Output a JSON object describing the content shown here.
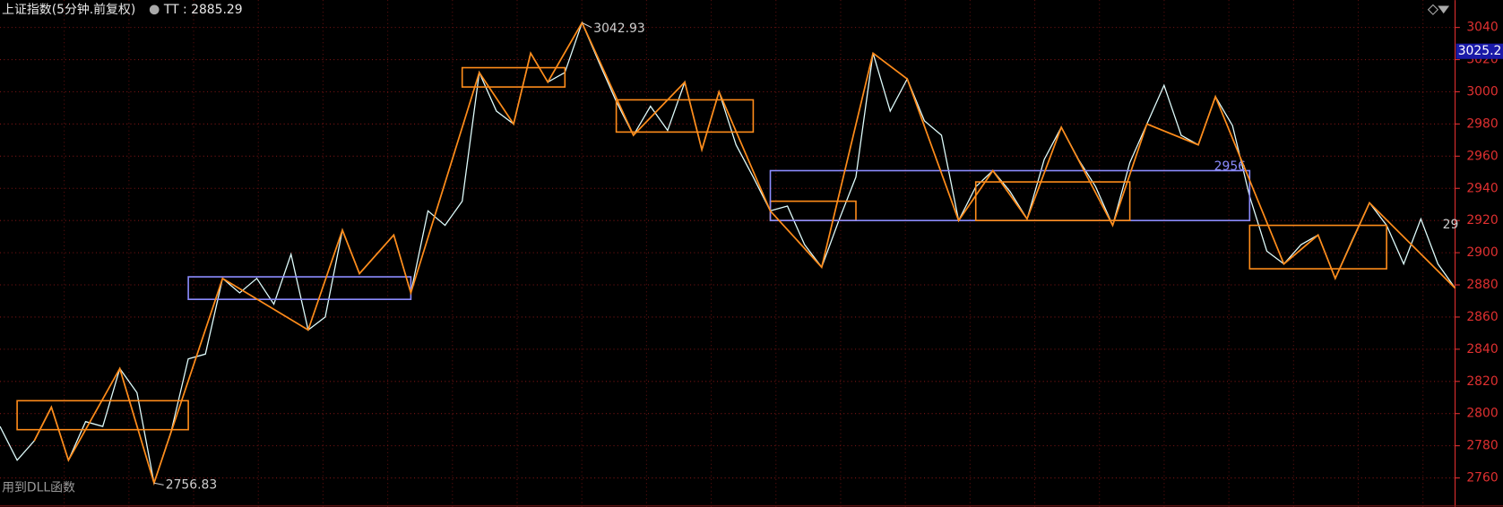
{
  "chart_data": {
    "type": "line",
    "title": "上证指数(5分钟.前复权)",
    "indicator": "TT : 2885.29",
    "footer_note": "用到DLL函数",
    "categories": [
      null,
      null,
      null,
      null,
      null,
      null,
      null,
      null,
      null,
      null,
      null,
      null,
      null,
      null,
      null,
      null,
      null,
      null,
      null,
      null,
      null,
      null,
      null,
      null,
      null,
      null,
      null,
      null,
      null,
      null,
      null,
      null,
      null,
      null,
      null,
      null,
      null,
      null,
      null,
      null,
      null,
      null,
      null,
      null,
      null,
      null,
      null,
      null,
      null,
      null,
      null,
      null,
      null,
      null,
      null,
      null,
      null,
      null,
      null,
      null,
      null,
      null,
      null,
      null,
      null,
      null,
      null,
      null,
      null,
      null,
      null,
      null,
      null,
      null,
      null,
      null,
      null,
      null,
      null,
      null,
      null,
      null,
      null,
      null,
      null,
      null
    ],
    "series": [
      {
        "color": "#dffcfc",
        "values": [
          2792,
          2771,
          2783,
          2804,
          2771,
          2795,
          2792,
          2828,
          2813,
          2756.83,
          2789,
          2834,
          2837,
          2884,
          2875,
          2884,
          2868,
          2899,
          2852,
          2860,
          2914,
          2887,
          2899,
          2911,
          2875,
          2926,
          2917,
          2932,
          3012,
          2988,
          2980,
          3024,
          3006,
          3012,
          3042.93,
          3018,
          2994,
          2973,
          2991,
          2976,
          3006,
          2964,
          3000,
          2967,
          2947,
          2926,
          2929,
          2905,
          2891,
          2920,
          2947,
          3024,
          2988,
          3008,
          2982,
          2973,
          2920,
          2941,
          2951,
          2938,
          2921,
          2958,
          2978,
          2958,
          2941,
          2917,
          2956,
          2980,
          3004,
          2973,
          2967,
          2997,
          2979,
          2935,
          2901,
          2893,
          2905,
          2911,
          2884,
          2908,
          2931,
          2917,
          2893,
          2921,
          2893,
          2878
        ]
      }
    ],
    "zigzag": {
      "color": "#ff8c1a",
      "points": [
        {
          "i": 2,
          "v": 2783
        },
        {
          "i": 3,
          "v": 2804
        },
        {
          "i": 4,
          "v": 2771
        },
        {
          "i": 7,
          "v": 2828
        },
        {
          "i": 9,
          "v": 2756.83
        },
        {
          "i": 13,
          "v": 2884
        },
        {
          "i": 18,
          "v": 2852
        },
        {
          "i": 20,
          "v": 2914
        },
        {
          "i": 21,
          "v": 2887
        },
        {
          "i": 23,
          "v": 2911
        },
        {
          "i": 24,
          "v": 2875
        },
        {
          "i": 28,
          "v": 3012
        },
        {
          "i": 30,
          "v": 2980
        },
        {
          "i": 31,
          "v": 3024
        },
        {
          "i": 32,
          "v": 3006
        },
        {
          "i": 34,
          "v": 3042.93
        },
        {
          "i": 37,
          "v": 2973
        },
        {
          "i": 40,
          "v": 3006
        },
        {
          "i": 41,
          "v": 2964
        },
        {
          "i": 42,
          "v": 3000
        },
        {
          "i": 45,
          "v": 2926
        },
        {
          "i": 48,
          "v": 2891
        },
        {
          "i": 51,
          "v": 3024
        },
        {
          "i": 53,
          "v": 3008
        },
        {
          "i": 56,
          "v": 2920
        },
        {
          "i": 58,
          "v": 2951
        },
        {
          "i": 60,
          "v": 2921
        },
        {
          "i": 62,
          "v": 2978
        },
        {
          "i": 65,
          "v": 2917
        },
        {
          "i": 67,
          "v": 2980
        },
        {
          "i": 70,
          "v": 2967
        },
        {
          "i": 71,
          "v": 2997
        },
        {
          "i": 75,
          "v": 2893
        },
        {
          "i": 77,
          "v": 2911
        },
        {
          "i": 78,
          "v": 2884
        },
        {
          "i": 80,
          "v": 2931
        },
        {
          "i": 85,
          "v": 2878
        }
      ]
    },
    "boxes": [
      {
        "start": 1,
        "end": 11,
        "low": 2790,
        "high": 2808,
        "color": "#ff8c1a"
      },
      {
        "start": 11,
        "end": 24,
        "low": 2871,
        "high": 2885,
        "color": "#8c8cff"
      },
      {
        "start": 27,
        "end": 33,
        "low": 3003,
        "high": 3015,
        "color": "#ff8c1a"
      },
      {
        "start": 36,
        "end": 44,
        "low": 2975,
        "high": 2995,
        "color": "#ff8c1a"
      },
      {
        "start": 45,
        "end": 50,
        "low": 2920,
        "high": 2932,
        "color": "#ff8c1a"
      },
      {
        "start": 45,
        "end": 73,
        "low": 2920,
        "high": 2951,
        "color": "#8c8cff",
        "label": 2956
      },
      {
        "start": 57,
        "end": 66,
        "low": 2920,
        "high": 2944,
        "color": "#ff8c1a"
      },
      {
        "start": 73,
        "end": 81,
        "low": 2890,
        "high": 2917,
        "color": "#ff8c1a"
      }
    ],
    "current_price": 3025.2,
    "clipped_label": "29",
    "ylim": [
      2742,
      3057
    ],
    "yticks": [
      2760,
      2780,
      2800,
      2820,
      2840,
      2860,
      2880,
      2900,
      2920,
      2940,
      2960,
      2980,
      3000,
      3020,
      3040
    ],
    "grid": true,
    "axis_color": "#e03030"
  }
}
